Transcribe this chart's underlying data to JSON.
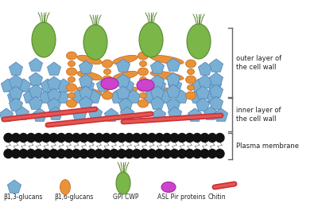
{
  "bg_color": "#ffffff",
  "figsize": [
    4.0,
    2.65
  ],
  "dpi": 100,
  "beta13_color": "#7aafd4",
  "beta13_edge": "#5588bb",
  "beta16_color": "#e8923a",
  "beta16_edge": "#cc7020",
  "gpi_fill": "#7ab648",
  "gpi_edge": "#5a8a30",
  "pir_color": "#cc44cc",
  "pir_edge": "#aa22aa",
  "chitin_color": "#cc3333",
  "chitin_highlight": "#ee6666",
  "membrane_color": "#111111",
  "membrane_tail": "#777777",
  "bracket_color": "#666666",
  "label_color": "#222222",
  "legend_labels": [
    "β1,3-glucans",
    "β1,6-glucans",
    "GPI CWP",
    "ASL Pir proteins",
    "Chitin"
  ],
  "outer_label": "outer layer of\nthe cell wall",
  "inner_label": "inner layer of\nthe cell wall",
  "membrane_label": "Plasma membrane",
  "xlim": [
    0,
    400
  ],
  "ylim": [
    0,
    265
  ]
}
